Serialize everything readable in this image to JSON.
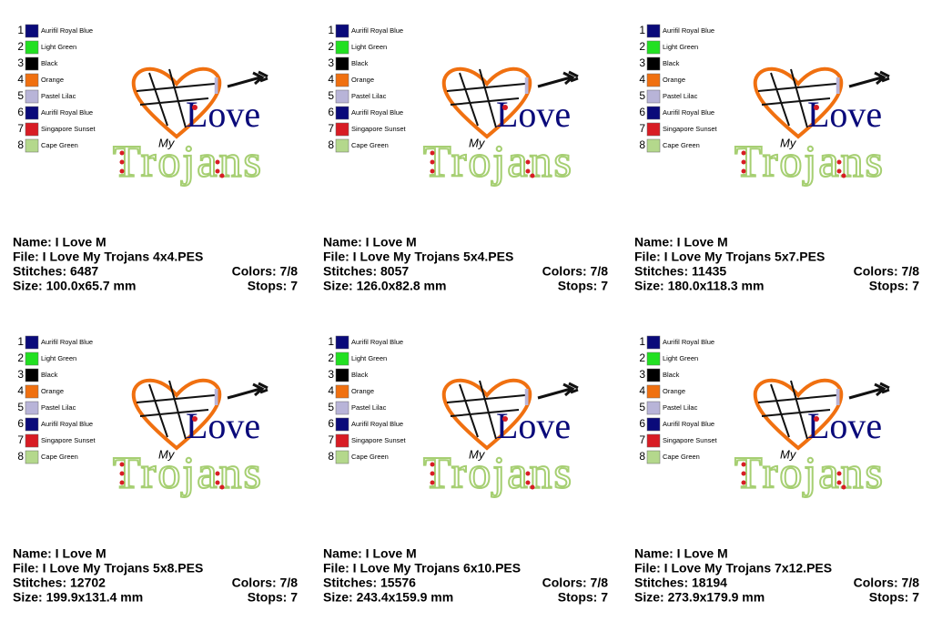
{
  "artwork": {
    "line1": "I",
    "line2": "Love",
    "line3": "My",
    "line4": "Trojans"
  },
  "thread_colors": [
    {
      "number": 1,
      "name": "Aurifil Royal Blue",
      "color": "#0a0a7a"
    },
    {
      "number": 2,
      "name": "Light Green",
      "color": "#22e022"
    },
    {
      "number": 3,
      "name": "Black",
      "color": "#000000"
    },
    {
      "number": 4,
      "name": "Orange",
      "color": "#f07010"
    },
    {
      "number": 5,
      "name": "Pastel Lilac",
      "color": "#b8b4d8"
    },
    {
      "number": 6,
      "name": "Aurifil Royal Blue",
      "color": "#0a0a7a"
    },
    {
      "number": 7,
      "name": "Singapore Sunset",
      "color": "#d81c24"
    },
    {
      "number": 8,
      "name": "Cape Green",
      "color": "#b4d88c"
    }
  ],
  "panels": [
    {
      "name": "Name: I Love M",
      "file": "File: I Love My Trojans 4x4.PES",
      "stitches": "Stitches: 6487",
      "colors": "Colors: 7/8",
      "size": "Size: 100.0x65.7 mm",
      "stops": "Stops: 7"
    },
    {
      "name": "Name: I Love M",
      "file": "File: I Love My Trojans 5x4.PES",
      "stitches": "Stitches: 8057",
      "colors": "Colors: 7/8",
      "size": "Size: 126.0x82.8 mm",
      "stops": "Stops: 7"
    },
    {
      "name": "Name: I Love M",
      "file": "File: I Love My Trojans 5x7.PES",
      "stitches": "Stitches: 11435",
      "colors": "Colors: 7/8",
      "size": "Size: 180.0x118.3 mm",
      "stops": "Stops: 7"
    },
    {
      "name": "Name: I Love M",
      "file": "File: I Love My Trojans 5x8.PES",
      "stitches": "Stitches: 12702",
      "colors": "Colors: 7/8",
      "size": "Size: 199.9x131.4 mm",
      "stops": "Stops: 7"
    },
    {
      "name": "Name: I Love M",
      "file": "File: I Love My Trojans 6x10.PES",
      "stitches": "Stitches: 15576",
      "colors": "Colors: 7/8",
      "size": "Size: 243.4x159.9 mm",
      "stops": "Stops: 7"
    },
    {
      "name": "Name: I Love M",
      "file": "File: I Love My Trojans 7x12.PES",
      "stitches": "Stitches: 18194",
      "colors": "Colors: 7/8",
      "size": "Size: 273.9x179.9 mm",
      "stops": "Stops: 7"
    }
  ]
}
